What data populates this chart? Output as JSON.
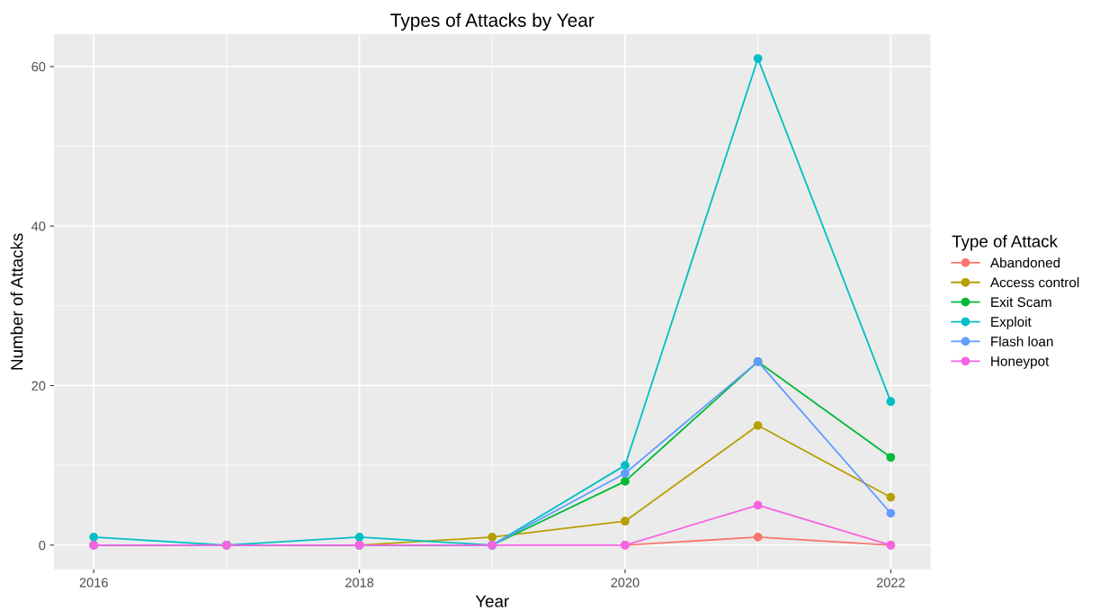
{
  "chart_data": {
    "type": "line",
    "title": "Types of Attacks by Year",
    "xlabel": "Year",
    "ylabel": "Number of Attacks",
    "legend_title": "Type of Attack",
    "x": [
      2016,
      2017,
      2018,
      2019,
      2020,
      2021,
      2022
    ],
    "series": [
      {
        "name": "Abandoned",
        "color": "#f8766d",
        "values": [
          null,
          null,
          null,
          null,
          0,
          1,
          0
        ]
      },
      {
        "name": "Access control",
        "color": "#b79f00",
        "values": [
          0,
          0,
          0,
          1,
          3,
          15,
          6
        ]
      },
      {
        "name": "Exit Scam",
        "color": "#00ba38",
        "values": [
          null,
          null,
          0,
          0,
          8,
          23,
          11
        ]
      },
      {
        "name": "Exploit",
        "color": "#00bfc4",
        "values": [
          1,
          0,
          1,
          0,
          10,
          61,
          18
        ]
      },
      {
        "name": "Flash loan",
        "color": "#619cff",
        "values": [
          0,
          0,
          0,
          0,
          9,
          23,
          4
        ]
      },
      {
        "name": "Honeypot",
        "color": "#f564e3",
        "values": [
          0,
          0,
          0,
          0,
          0,
          5,
          0
        ]
      }
    ],
    "xlim": [
      2015.7,
      2022.3
    ],
    "xticks": [
      2016,
      2018,
      2020,
      2022
    ],
    "ylim": [
      -3.05,
      64.05
    ],
    "yticks": [
      0,
      20,
      40,
      60
    ],
    "grid": true,
    "legend": "right",
    "marker": "circle",
    "line_style": "solid"
  }
}
